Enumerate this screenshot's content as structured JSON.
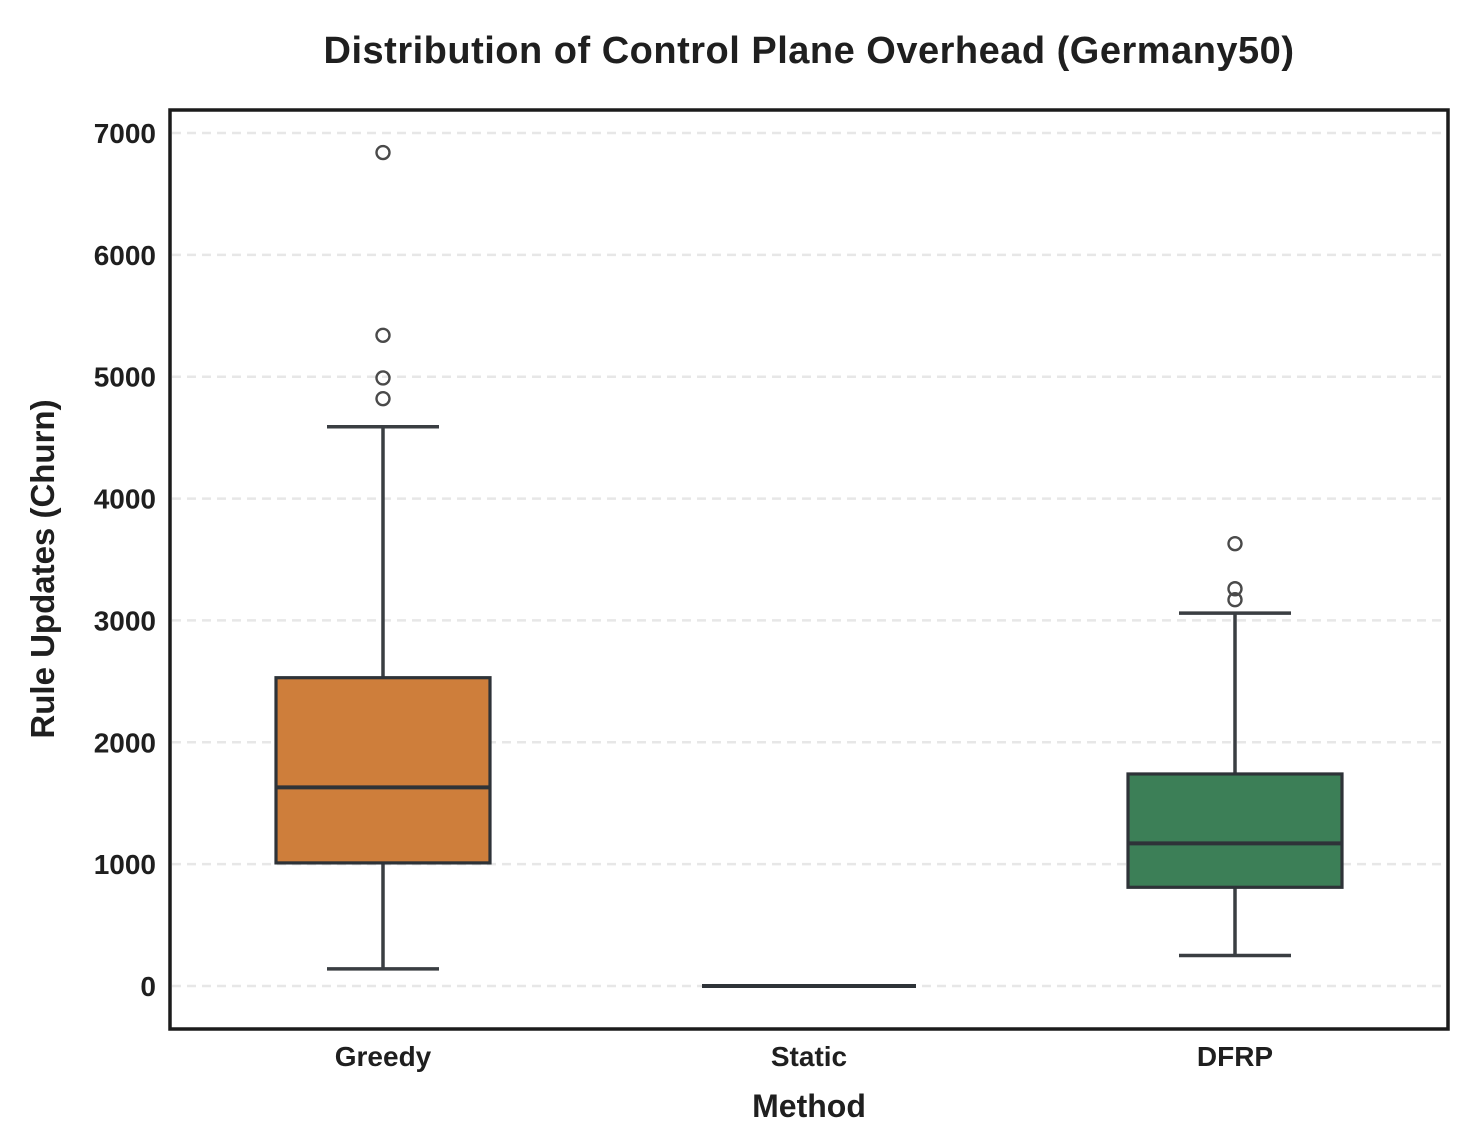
{
  "chart_data": {
    "type": "boxplot",
    "title": "Distribution of Control Plane Overhead (Germany50)",
    "xlabel": "Method",
    "ylabel": "Rule Updates (Churn)",
    "categories": [
      "Greedy",
      "Static",
      "DFRP"
    ],
    "y_ticks": [
      0,
      1000,
      2000,
      3000,
      4000,
      5000,
      6000,
      7000
    ],
    "ylim": [
      -353,
      7189
    ],
    "grid": "horizontal-dashed",
    "legend": "none",
    "series": [
      {
        "name": "Greedy",
        "whisker_low": 140,
        "q1": 1010,
        "median": 1630,
        "q3": 2530,
        "whisker_high": 4590,
        "outliers": [
          4820,
          4990,
          5340,
          6840
        ],
        "fill_color": "#CE7E3B"
      },
      {
        "name": "Static",
        "whisker_low": 0,
        "q1": 0,
        "median": 0,
        "q3": 0,
        "whisker_high": 0,
        "outliers": [],
        "fill_color": null
      },
      {
        "name": "DFRP",
        "whisker_low": 250,
        "q1": 810,
        "median": 1170,
        "q3": 1740,
        "whisker_high": 3060,
        "outliers": [
          3170,
          3260,
          3630
        ],
        "fill_color": "#3C7F57"
      }
    ],
    "colors": {
      "box_edge": "#2E3338",
      "median_line": "#2E3338",
      "whisker": "#3A3E42",
      "outlier_stroke": "#4A4A4A",
      "grid_line": "#E7E7E7",
      "frame": "#1B1B1B",
      "background": "#FFFFFF"
    }
  }
}
